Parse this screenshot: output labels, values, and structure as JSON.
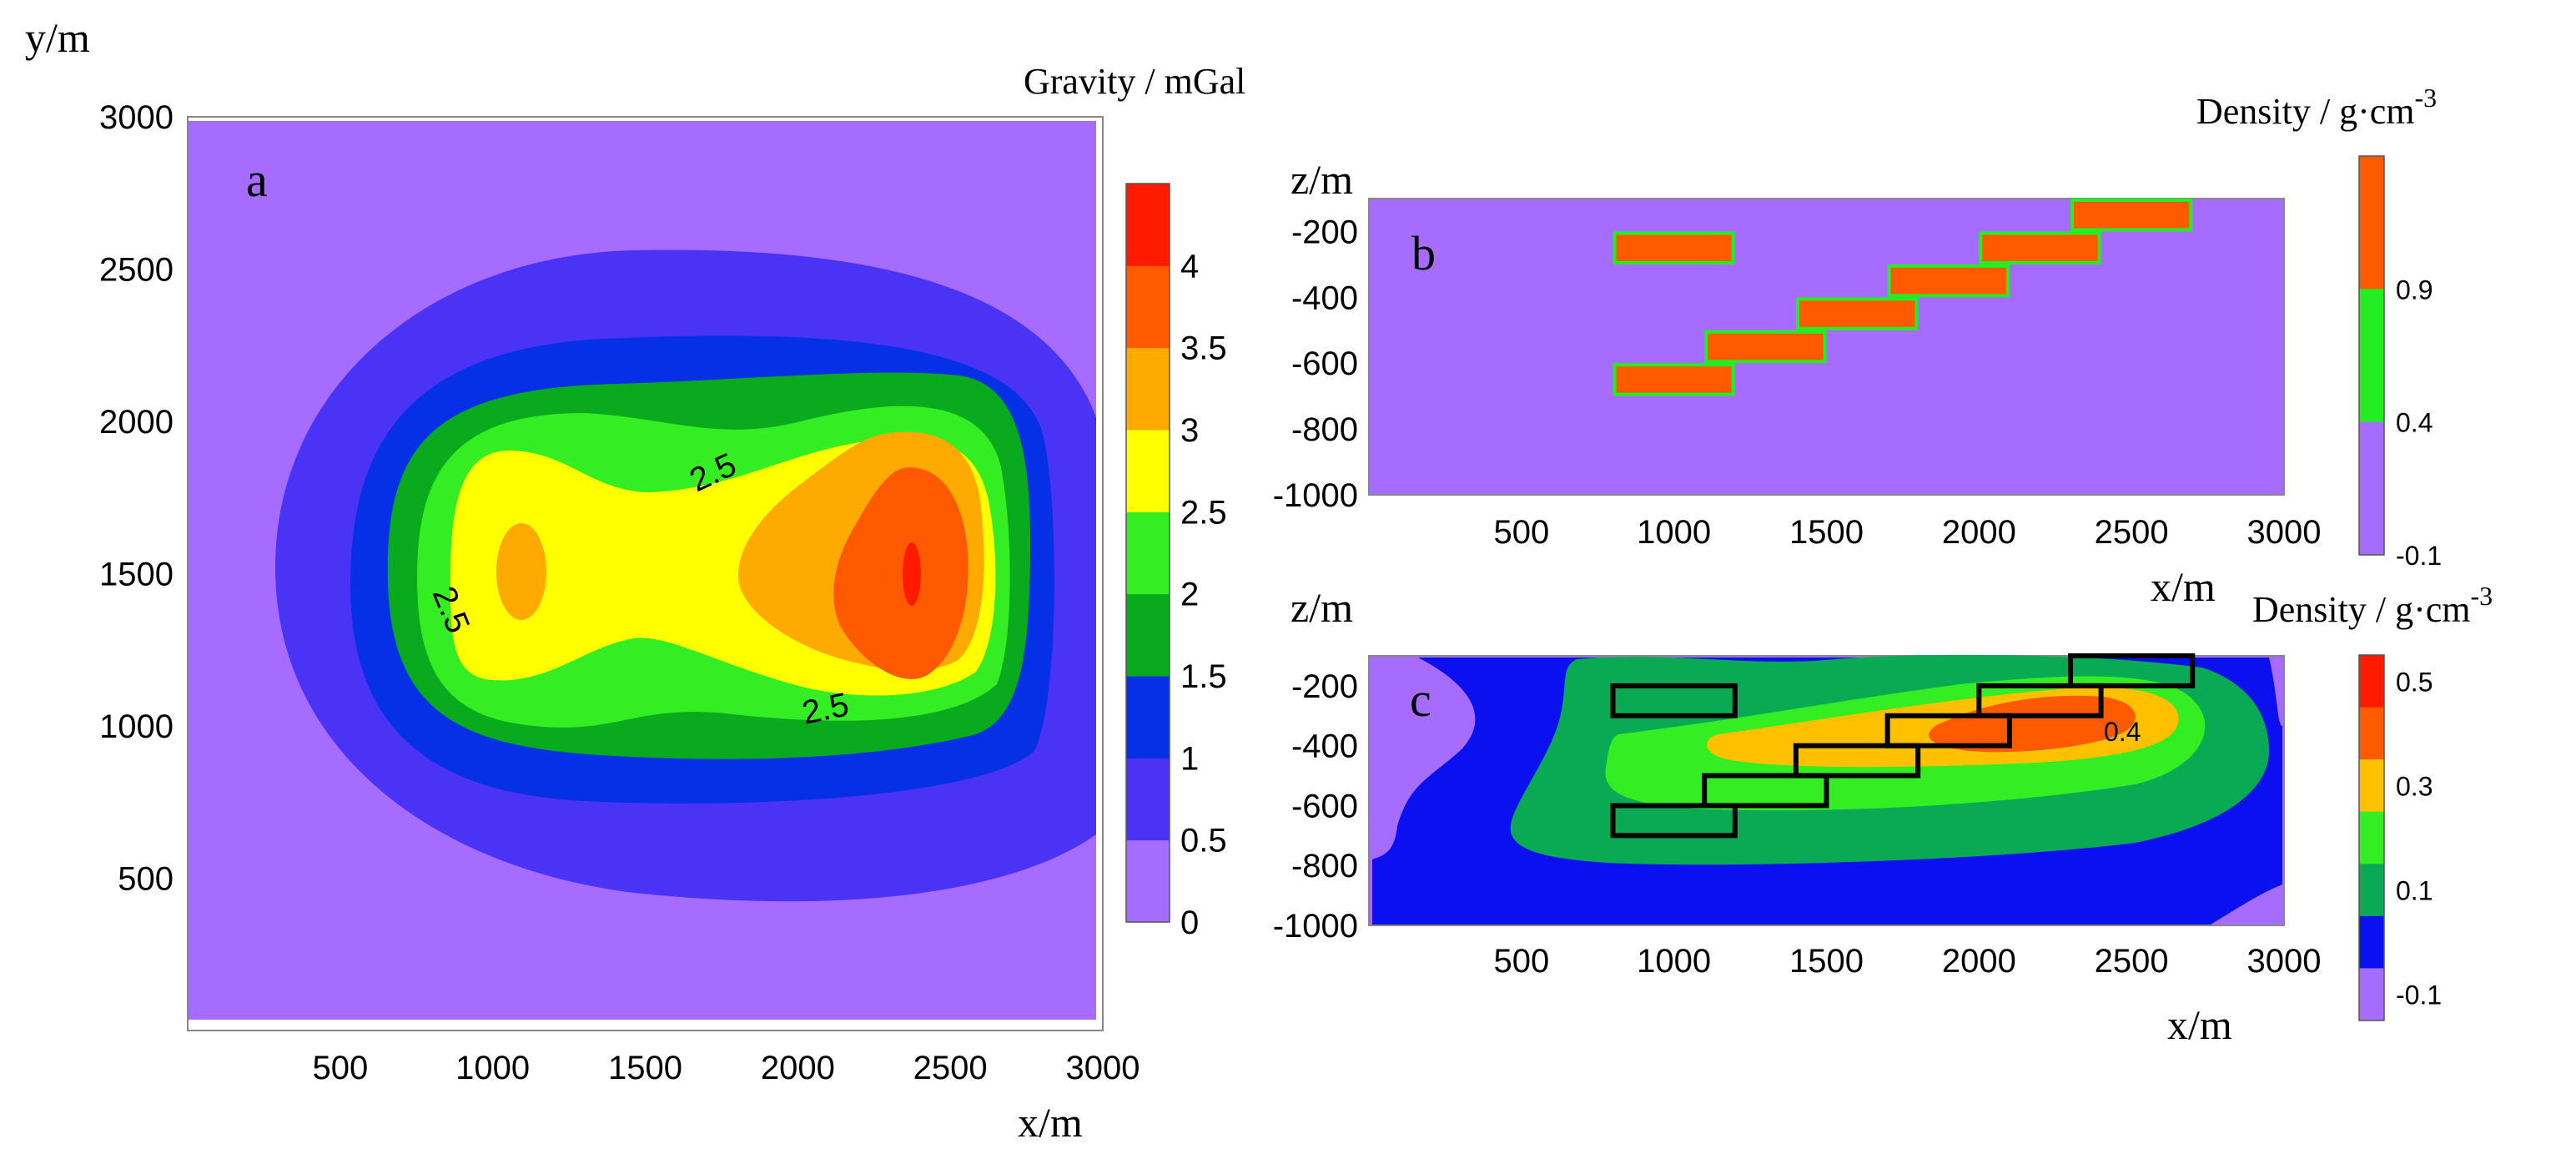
{
  "chart_data": [
    {
      "type": "heatmap",
      "panel_label": "a",
      "title": "Gravity / mGal",
      "xlabel": "x/m",
      "ylabel": "y/m",
      "xlim": [
        0,
        3000
      ],
      "ylim": [
        0,
        3000
      ],
      "xticks": [
        "500",
        "1000",
        "1500",
        "2000",
        "2500",
        "3000"
      ],
      "yticks": [
        "500",
        "1000",
        "1500",
        "2000",
        "2500",
        "3000"
      ],
      "contour_labels": [
        "2.5",
        "2.5",
        "2.5"
      ],
      "colorbar_ticks": [
        "0",
        "0.5",
        "1",
        "1.5",
        "2",
        "2.5",
        "3",
        "3.5",
        "4"
      ],
      "colorbar_colors": [
        "#a66cff",
        "#4b33f5",
        "#0530e6",
        "#0aaa1e",
        "#33ee22",
        "#ffff00",
        "#ffaa00",
        "#ff5a00",
        "#ff1a00"
      ]
    },
    {
      "type": "heatmap",
      "panel_label": "b",
      "title_prefix": "Density / g·cm",
      "title_sup": "-3",
      "xlabel": "x/m",
      "ylabel": "z/m",
      "xlim": [
        0,
        3000
      ],
      "ylim": [
        -1000,
        -100
      ],
      "xticks": [
        "500",
        "1000",
        "1500",
        "2000",
        "2500",
        "3000"
      ],
      "yticks": [
        "-200",
        "-400",
        "-600",
        "-800",
        "-1000"
      ],
      "colorbar_ticks": [
        "0.9",
        "0.4",
        "-0.1"
      ],
      "colorbar_colors": [
        "#ff5a00",
        "#22ee22",
        "#a66cff"
      ],
      "background_density": 0,
      "body_density": 1,
      "bodies": [
        {
          "x": [
            800,
            1200
          ],
          "z": [
            -200,
            -300
          ]
        },
        {
          "x": [
            800,
            1200
          ],
          "z": [
            -600,
            -700
          ]
        },
        {
          "x": [
            1100,
            1500
          ],
          "z": [
            -500,
            -600
          ]
        },
        {
          "x": [
            1400,
            1800
          ],
          "z": [
            -400,
            -500
          ]
        },
        {
          "x": [
            1700,
            2100
          ],
          "z": [
            -300,
            -400
          ]
        },
        {
          "x": [
            2000,
            2400
          ],
          "z": [
            -200,
            -300
          ]
        },
        {
          "x": [
            2300,
            2700
          ],
          "z": [
            -100,
            -200
          ]
        }
      ]
    },
    {
      "type": "heatmap",
      "panel_label": "c",
      "title_prefix": "Density / g·cm",
      "title_sup": "-3",
      "xlabel": "x/m",
      "ylabel": "z/m",
      "xlim": [
        0,
        3000
      ],
      "ylim": [
        -1000,
        -100
      ],
      "xticks": [
        "500",
        "1000",
        "1500",
        "2000",
        "2500",
        "3000"
      ],
      "yticks": [
        "-200",
        "-400",
        "-600",
        "-800",
        "-1000"
      ],
      "contour_labels": [
        "0.4"
      ],
      "colorbar_ticks": [
        "0.5",
        "0.3",
        "0.1",
        "-0.1"
      ],
      "colorbar_colors": [
        "#ff1a00",
        "#ff5a00",
        "#ffc000",
        "#33ee22",
        "#0aaa55",
        "#0a10f0",
        "#a66cff"
      ]
    }
  ]
}
